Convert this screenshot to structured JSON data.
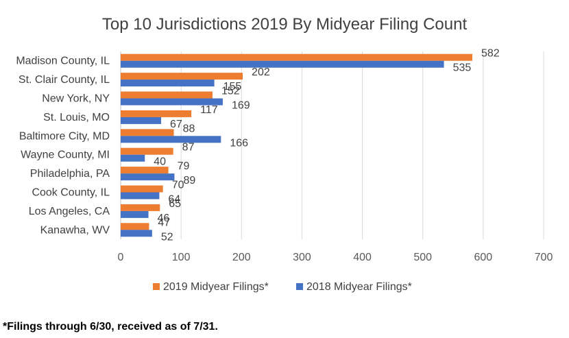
{
  "chart_data": {
    "type": "bar",
    "orientation": "horizontal",
    "title": "Top 10 Jurisdictions 2019 By Midyear Filing Count",
    "categories": [
      "Madison County, IL",
      "St. Clair County, IL",
      "New York, NY",
      "St. Louis, MO",
      "Baltimore City, MD",
      "Wayne County, MI",
      "Philadelphia, PA",
      "Cook County, IL",
      "Los Angeles, CA",
      "Kanawha, WV"
    ],
    "series": [
      {
        "name": "2019 Midyear Filings*",
        "color": "#ED7D31",
        "values": [
          582,
          202,
          152,
          117,
          88,
          87,
          79,
          70,
          65,
          47
        ]
      },
      {
        "name": "2018 Midyear Filings*",
        "color": "#4472C4",
        "values": [
          535,
          155,
          169,
          67,
          166,
          40,
          89,
          64,
          46,
          52
        ]
      }
    ],
    "xlim": [
      0,
      700
    ],
    "xticks": [
      0,
      100,
      200,
      300,
      400,
      500,
      600,
      700
    ],
    "grid": "vertical",
    "legend": "bottom"
  },
  "footnote": "*Filings through 6/30, received as of 7/31."
}
